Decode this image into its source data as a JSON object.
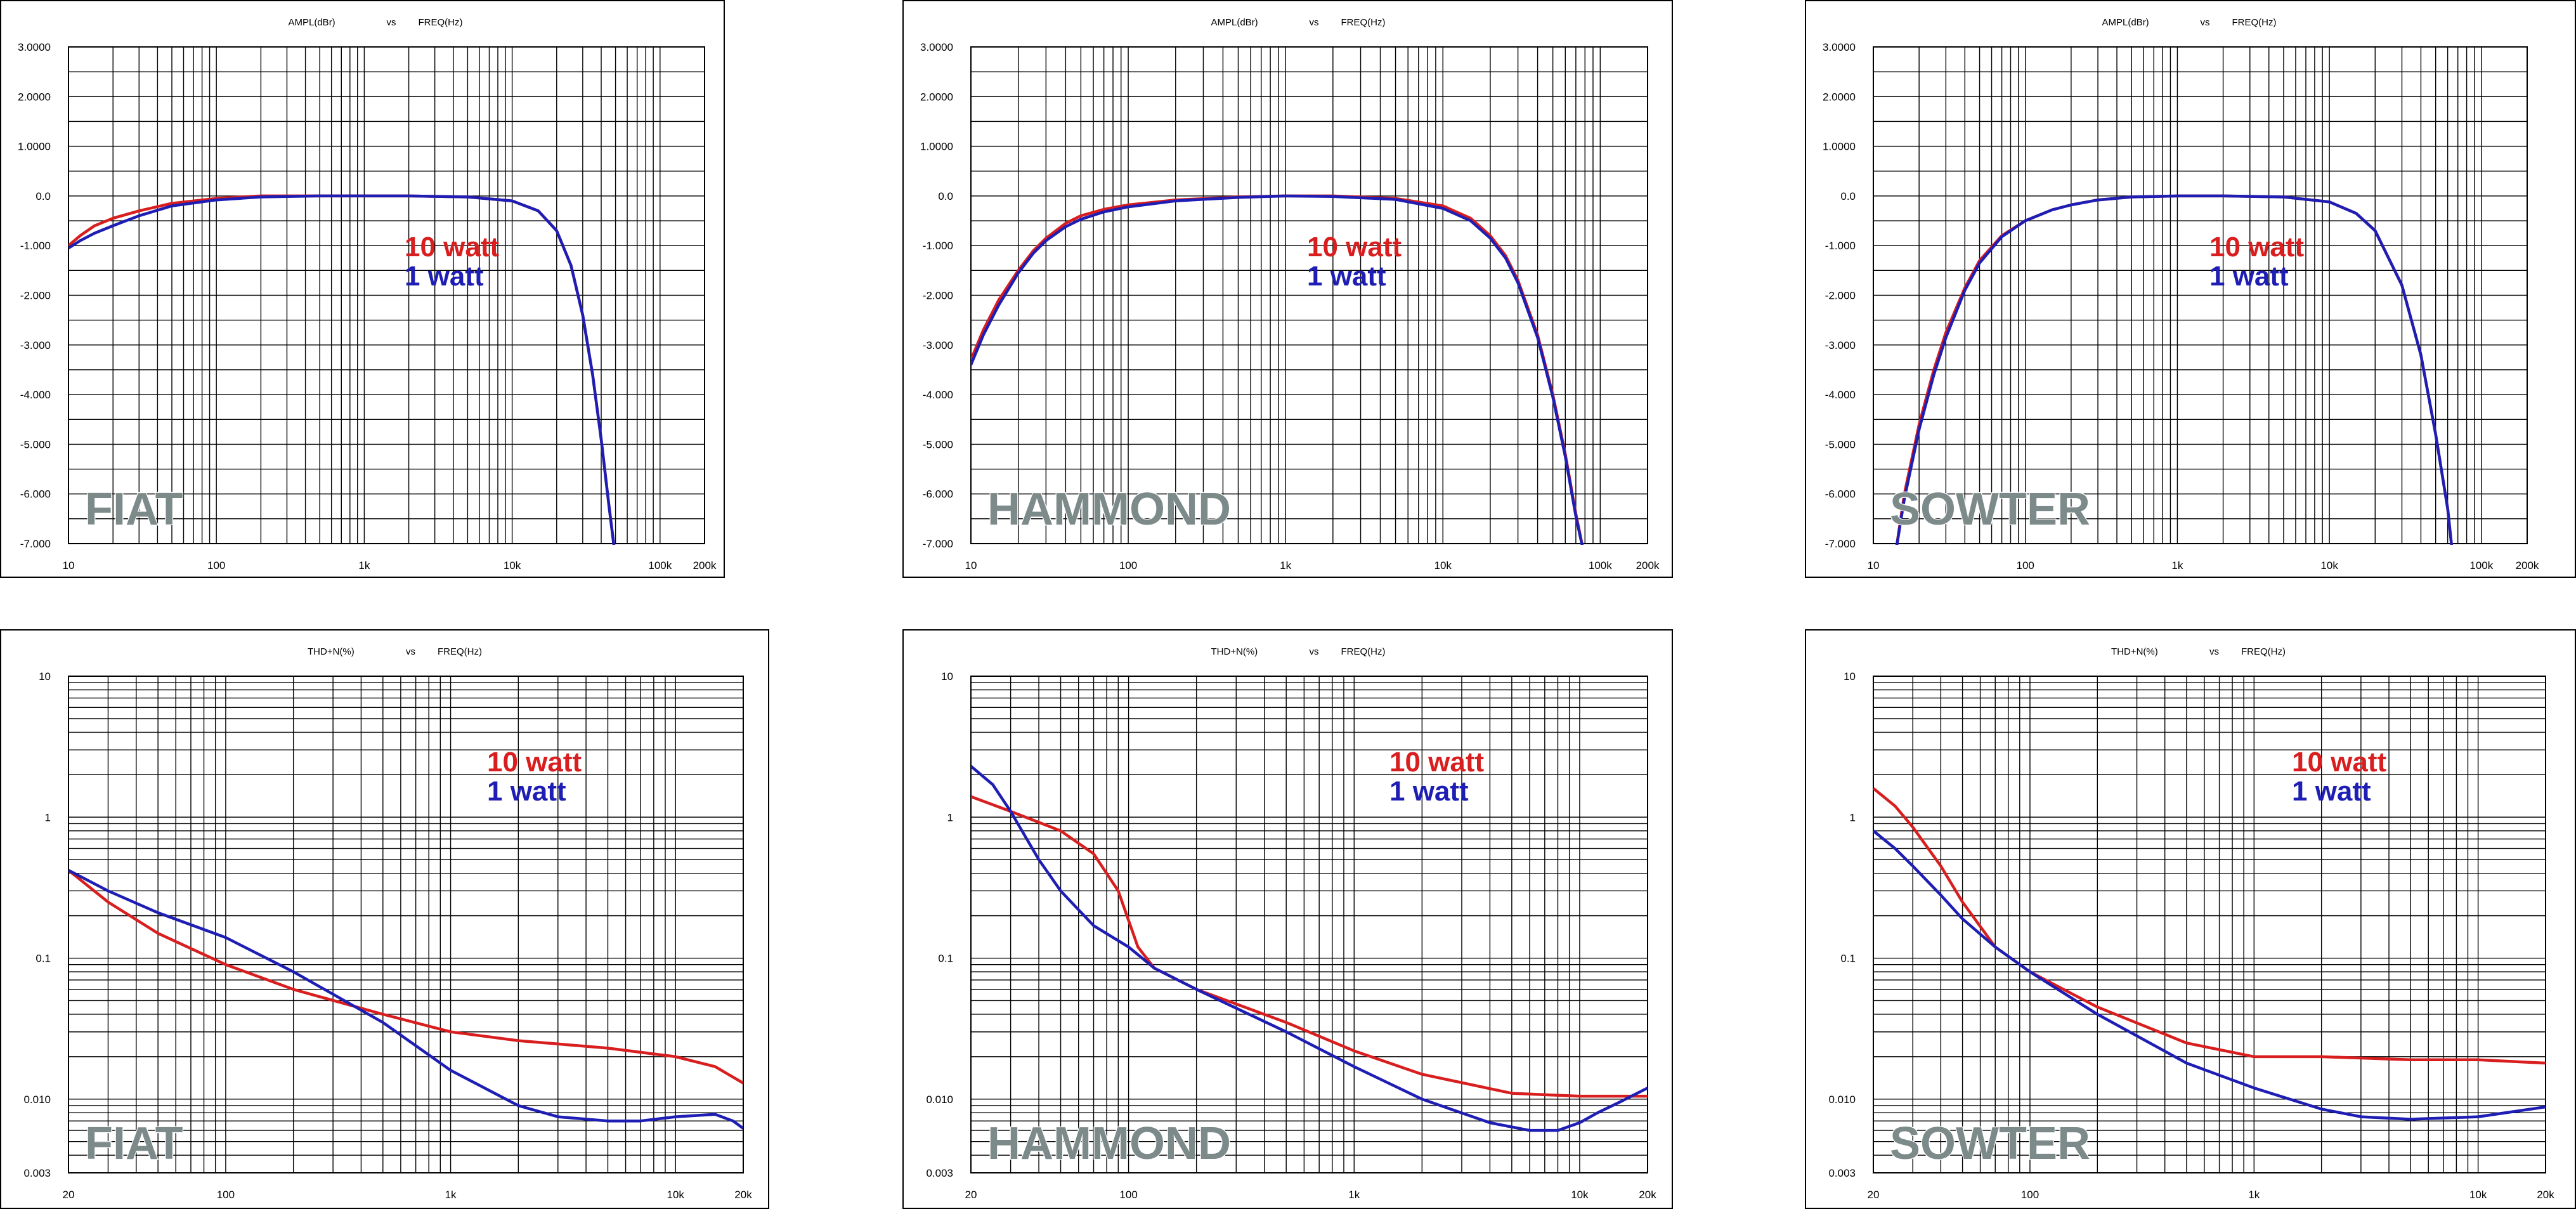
{
  "colors": {
    "red_series": "#d81e1e",
    "blue_series": "#1e1eb4",
    "watermark": "#7d8a8a",
    "grid": "#000000"
  },
  "chart_data": [
    {
      "type": "line",
      "title_y": "AMPL(dBr)",
      "title_vs": "vs",
      "title_x": "FREQ(Hz)",
      "x_scale": "log",
      "xlim": [
        10,
        200000
      ],
      "ylim": [
        -7,
        3
      ],
      "x_ticks": [
        10,
        100,
        1000,
        10000,
        100000,
        200000
      ],
      "x_tick_labels": [
        "10",
        "100",
        "1k",
        "10k",
        "100k",
        "200k"
      ],
      "y_ticks": [
        3,
        2,
        1,
        0,
        -1,
        -2,
        -3,
        -4,
        -5,
        -6,
        -7
      ],
      "y_tick_labels": [
        "3.0000",
        "2.0000",
        "1.0000",
        "0.0",
        "-1.000",
        "-2.000",
        "-3.000",
        "-4.000",
        "-5.000",
        "-6.000",
        "-7.000"
      ],
      "watermark": "FIAT",
      "legend": [
        {
          "text": "10 watt",
          "color": "red"
        },
        {
          "text": "1   watt",
          "color": "blue"
        }
      ],
      "series": [
        {
          "color": "red",
          "x": [
            10,
            12,
            15,
            20,
            30,
            50,
            100,
            200,
            500,
            1000,
            2000,
            5000,
            10000,
            15000,
            20000,
            25000,
            30000,
            35000,
            40000,
            45000,
            50000
          ],
          "y": [
            -1.0,
            -0.8,
            -0.6,
            -0.45,
            -0.3,
            -0.15,
            -0.05,
            0,
            0,
            0,
            0,
            -0.02,
            -0.1,
            -0.3,
            -0.7,
            -1.4,
            -2.4,
            -3.6,
            -4.9,
            -6.2,
            -7.3
          ]
        },
        {
          "color": "blue",
          "x": [
            10,
            12,
            15,
            20,
            30,
            50,
            100,
            200,
            500,
            1000,
            2000,
            5000,
            10000,
            15000,
            20000,
            25000,
            30000,
            35000,
            40000,
            45000,
            50000
          ],
          "y": [
            -1.05,
            -0.9,
            -0.75,
            -0.6,
            -0.4,
            -0.2,
            -0.08,
            -0.02,
            0,
            0,
            0,
            -0.02,
            -0.1,
            -0.3,
            -0.7,
            -1.4,
            -2.4,
            -3.6,
            -4.9,
            -6.2,
            -7.3
          ]
        }
      ]
    },
    {
      "type": "line",
      "title_y": "AMPL(dBr)",
      "title_vs": "vs",
      "title_x": "FREQ(Hz)",
      "x_scale": "log",
      "xlim": [
        10,
        200000
      ],
      "ylim": [
        -7,
        3
      ],
      "x_ticks": [
        10,
        100,
        1000,
        10000,
        100000,
        200000
      ],
      "x_tick_labels": [
        "10",
        "100",
        "1k",
        "10k",
        "100k",
        "200k"
      ],
      "y_ticks": [
        3,
        2,
        1,
        0,
        -1,
        -2,
        -3,
        -4,
        -5,
        -6,
        -7
      ],
      "y_tick_labels": [
        "3.0000",
        "2.0000",
        "1.0000",
        "0.0",
        "-1.000",
        "-2.000",
        "-3.000",
        "-4.000",
        "-5.000",
        "-6.000",
        "-7.000"
      ],
      "watermark": "HAMMOND",
      "legend": [
        {
          "text": "10 watt",
          "color": "red"
        },
        {
          "text": "1   watt",
          "color": "blue"
        }
      ],
      "series": [
        {
          "color": "red",
          "x": [
            10,
            12,
            15,
            20,
            25,
            30,
            40,
            50,
            70,
            100,
            200,
            500,
            1000,
            2000,
            5000,
            10000,
            15000,
            20000,
            25000,
            30000,
            40000,
            50000,
            60000,
            70000,
            80000
          ],
          "y": [
            -3.3,
            -2.7,
            -2.1,
            -1.5,
            -1.1,
            -0.85,
            -0.55,
            -0.4,
            -0.27,
            -0.18,
            -0.08,
            -0.02,
            0,
            0,
            -0.05,
            -0.2,
            -0.45,
            -0.8,
            -1.2,
            -1.7,
            -2.8,
            -4.0,
            -5.2,
            -6.4,
            -7.3
          ]
        },
        {
          "color": "blue",
          "x": [
            10,
            12,
            15,
            20,
            25,
            30,
            40,
            50,
            70,
            100,
            200,
            500,
            1000,
            2000,
            5000,
            10000,
            15000,
            20000,
            25000,
            30000,
            40000,
            50000,
            60000,
            70000,
            80000
          ],
          "y": [
            -3.4,
            -2.8,
            -2.2,
            -1.55,
            -1.15,
            -0.9,
            -0.62,
            -0.47,
            -0.32,
            -0.22,
            -0.1,
            -0.03,
            0,
            -0.01,
            -0.07,
            -0.25,
            -0.5,
            -0.85,
            -1.25,
            -1.75,
            -2.85,
            -4.05,
            -5.25,
            -6.45,
            -7.3
          ]
        }
      ]
    },
    {
      "type": "line",
      "title_y": "AMPL(dBr)",
      "title_vs": "vs",
      "title_x": "FREQ(Hz)",
      "x_scale": "log",
      "xlim": [
        10,
        200000
      ],
      "ylim": [
        -7,
        3
      ],
      "x_ticks": [
        10,
        100,
        1000,
        10000,
        100000,
        200000
      ],
      "x_tick_labels": [
        "10",
        "100",
        "1k",
        "10k",
        "100k",
        "200k"
      ],
      "y_ticks": [
        3,
        2,
        1,
        0,
        -1,
        -2,
        -3,
        -4,
        -5,
        -6,
        -7
      ],
      "y_tick_labels": [
        "3.0000",
        "2.0000",
        "1.0000",
        "0.0",
        "-1.000",
        "-2.000",
        "-3.000",
        "-4.000",
        "-5.000",
        "-6.000",
        "-7.000"
      ],
      "watermark": "SOWTER",
      "legend": [
        {
          "text": "10 watt",
          "color": "red"
        },
        {
          "text": "1   watt",
          "color": "blue"
        }
      ],
      "series": [
        {
          "color": "red",
          "x": [
            14,
            16,
            20,
            25,
            30,
            40,
            50,
            70,
            100,
            150,
            200,
            300,
            500,
            1000,
            2000,
            5000,
            10000,
            15000,
            20000,
            30000,
            40000,
            50000,
            60000,
            65000
          ],
          "y": [
            -7.2,
            -6.0,
            -4.6,
            -3.5,
            -2.75,
            -1.85,
            -1.3,
            -0.8,
            -0.5,
            -0.28,
            -0.18,
            -0.08,
            -0.02,
            0,
            0,
            -0.02,
            -0.12,
            -0.35,
            -0.7,
            -1.8,
            -3.2,
            -4.8,
            -6.3,
            -7.3
          ]
        },
        {
          "color": "blue",
          "x": [
            14,
            16,
            20,
            25,
            30,
            40,
            50,
            70,
            100,
            150,
            200,
            300,
            500,
            1000,
            2000,
            5000,
            10000,
            15000,
            20000,
            30000,
            40000,
            50000,
            60000,
            65000
          ],
          "y": [
            -7.2,
            -6.1,
            -4.7,
            -3.6,
            -2.85,
            -1.9,
            -1.35,
            -0.82,
            -0.5,
            -0.28,
            -0.18,
            -0.08,
            -0.02,
            0,
            0,
            -0.02,
            -0.12,
            -0.35,
            -0.7,
            -1.8,
            -3.2,
            -4.8,
            -6.3,
            -7.3
          ]
        }
      ]
    },
    {
      "type": "line",
      "title_y": "THD+N(%)",
      "title_vs": "vs",
      "title_x": "FREQ(Hz)",
      "x_scale": "log",
      "y_scale": "log",
      "xlim": [
        20,
        20000
      ],
      "ylim": [
        0.003,
        10
      ],
      "x_ticks": [
        20,
        100,
        1000,
        10000,
        20000
      ],
      "x_tick_labels": [
        "20",
        "100",
        "1k",
        "10k",
        "20k"
      ],
      "y_ticks": [
        10,
        1,
        0.1,
        0.01,
        0.003
      ],
      "y_tick_labels": [
        "10",
        "1",
        "0.1",
        "0.010",
        "0.003"
      ],
      "watermark": "FIAT",
      "legend": [
        {
          "text": "10 watt",
          "color": "red"
        },
        {
          "text": "1 watt",
          "color": "blue"
        }
      ],
      "series": [
        {
          "color": "red",
          "x": [
            20,
            30,
            50,
            100,
            200,
            500,
            1000,
            2000,
            5000,
            10000,
            15000,
            20000
          ],
          "y": [
            0.42,
            0.25,
            0.15,
            0.09,
            0.06,
            0.04,
            0.03,
            0.026,
            0.023,
            0.02,
            0.017,
            0.013
          ]
        },
        {
          "color": "blue",
          "x": [
            20,
            30,
            50,
            100,
            200,
            500,
            1000,
            2000,
            3000,
            5000,
            7000,
            10000,
            15000,
            18000,
            20000
          ],
          "y": [
            0.42,
            0.3,
            0.21,
            0.14,
            0.08,
            0.035,
            0.016,
            0.009,
            0.0075,
            0.007,
            0.007,
            0.0075,
            0.0078,
            0.007,
            0.0062
          ]
        }
      ]
    },
    {
      "type": "line",
      "title_y": "THD+N(%)",
      "title_vs": "vs",
      "title_x": "FREQ(Hz)",
      "x_scale": "log",
      "y_scale": "log",
      "xlim": [
        20,
        20000
      ],
      "ylim": [
        0.003,
        10
      ],
      "x_ticks": [
        20,
        100,
        1000,
        10000,
        20000
      ],
      "x_tick_labels": [
        "20",
        "100",
        "1k",
        "10k",
        "20k"
      ],
      "y_ticks": [
        10,
        1,
        0.1,
        0.01,
        0.003
      ],
      "y_tick_labels": [
        "10",
        "1",
        "0.1",
        "0.010",
        "0.003"
      ],
      "watermark": "HAMMOND",
      "legend": [
        {
          "text": "10 watt",
          "color": "red"
        },
        {
          "text": "1 watt",
          "color": "blue"
        }
      ],
      "series": [
        {
          "color": "red",
          "x": [
            20,
            30,
            50,
            70,
            90,
            110,
            130,
            200,
            500,
            1000,
            2000,
            5000,
            10000,
            20000
          ],
          "y": [
            1.4,
            1.1,
            0.8,
            0.55,
            0.3,
            0.12,
            0.085,
            0.06,
            0.035,
            0.022,
            0.015,
            0.011,
            0.0105,
            0.0105
          ]
        },
        {
          "color": "blue",
          "x": [
            20,
            25,
            30,
            40,
            50,
            70,
            100,
            130,
            200,
            500,
            1000,
            2000,
            4000,
            6000,
            8000,
            10000,
            12000,
            15000,
            20000
          ],
          "y": [
            2.3,
            1.7,
            1.1,
            0.5,
            0.3,
            0.17,
            0.12,
            0.085,
            0.06,
            0.03,
            0.017,
            0.01,
            0.0068,
            0.006,
            0.006,
            0.0068,
            0.008,
            0.0095,
            0.012
          ]
        }
      ]
    },
    {
      "type": "line",
      "title_y": "THD+N(%)",
      "title_vs": "vs",
      "title_x": "FREQ(Hz)",
      "x_scale": "log",
      "y_scale": "log",
      "xlim": [
        20,
        20000
      ],
      "ylim": [
        0.003,
        10
      ],
      "x_ticks": [
        20,
        100,
        1000,
        10000,
        20000
      ],
      "x_tick_labels": [
        "20",
        "100",
        "1k",
        "10k",
        "20k"
      ],
      "y_ticks": [
        10,
        1,
        0.1,
        0.01,
        0.003
      ],
      "y_tick_labels": [
        "10",
        "1",
        "0.1",
        "0.010",
        "0.003"
      ],
      "watermark": "SOWTER",
      "legend": [
        {
          "text": "10 watt",
          "color": "red"
        },
        {
          "text": "1 watt",
          "color": "blue"
        }
      ],
      "series": [
        {
          "color": "red",
          "x": [
            20,
            25,
            30,
            40,
            50,
            70,
            100,
            200,
            500,
            1000,
            2000,
            5000,
            10000,
            20000
          ],
          "y": [
            1.6,
            1.2,
            0.85,
            0.45,
            0.25,
            0.12,
            0.08,
            0.045,
            0.025,
            0.02,
            0.02,
            0.019,
            0.019,
            0.018
          ]
        },
        {
          "color": "blue",
          "x": [
            20,
            25,
            30,
            40,
            50,
            70,
            100,
            200,
            500,
            1000,
            2000,
            3000,
            5000,
            10000,
            20000
          ],
          "y": [
            0.8,
            0.6,
            0.45,
            0.28,
            0.19,
            0.12,
            0.08,
            0.04,
            0.018,
            0.012,
            0.0085,
            0.0075,
            0.0072,
            0.0075,
            0.0088
          ]
        }
      ]
    }
  ]
}
